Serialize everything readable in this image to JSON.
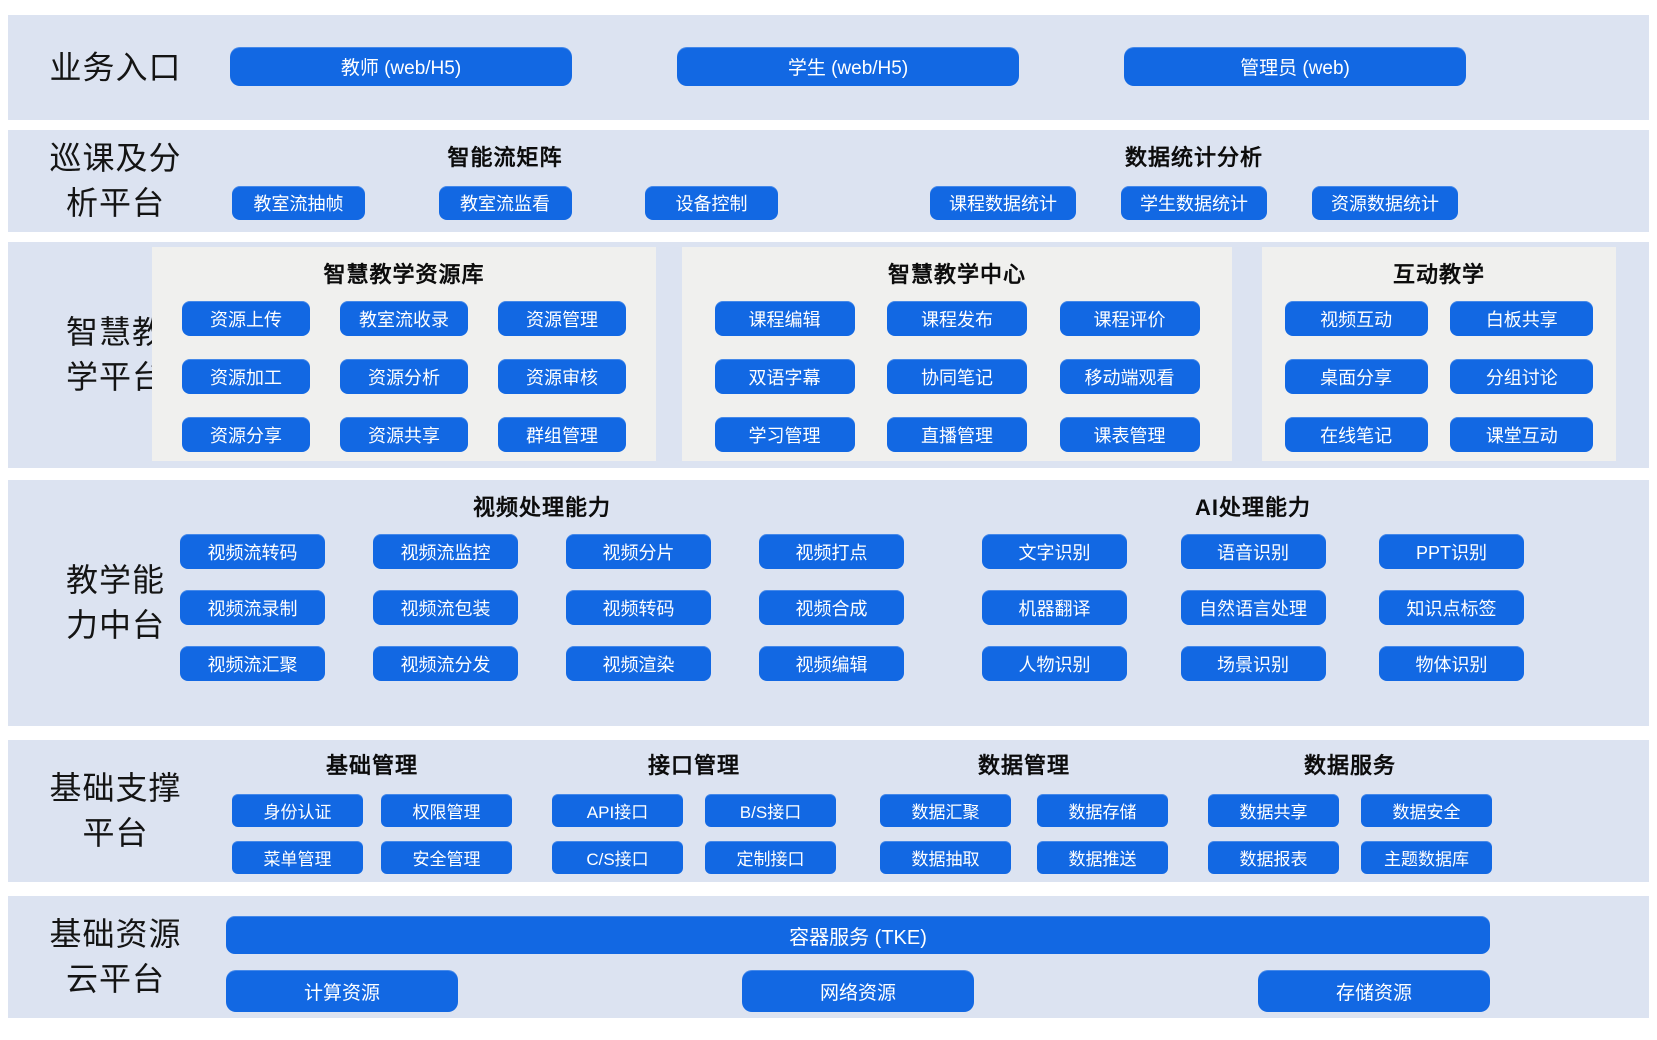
{
  "colors": {
    "button_blue": "#1268e3",
    "band_background": "#dce3f1",
    "panel_background": "#f0f0ee",
    "text_dark": "#141414",
    "button_text": "#ffffff"
  },
  "bands": {
    "business": {
      "label": "业务入口",
      "buttons": [
        "教师 (web/H5)",
        "学生 (web/H5)",
        "管理员 (web)"
      ]
    },
    "inspection": {
      "label": "巡课及分\n析平台",
      "groups": [
        {
          "title": "智能流矩阵",
          "buttons": [
            "教室流抽帧",
            "教室流监看",
            "设备控制"
          ]
        },
        {
          "title": "数据统计分析",
          "buttons": [
            "课程数据统计",
            "学生数据统计",
            "资源数据统计"
          ]
        }
      ]
    },
    "teaching": {
      "label": "智慧教\n学平台",
      "panels": [
        {
          "title": "智慧教学资源库",
          "buttons": [
            "资源上传",
            "教室流收录",
            "资源管理",
            "资源加工",
            "资源分析",
            "资源审核",
            "资源分享",
            "资源共享",
            "群组管理"
          ]
        },
        {
          "title": "智慧教学中心",
          "buttons": [
            "课程编辑",
            "课程发布",
            "课程评价",
            "双语字幕",
            "协同笔记",
            "移动端观看",
            "学习管理",
            "直播管理",
            "课表管理"
          ]
        },
        {
          "title": "互动教学",
          "buttons": [
            "视频互动",
            "白板共享",
            "桌面分享",
            "分组讨论",
            "在线笔记",
            "课堂互动"
          ]
        }
      ]
    },
    "capability": {
      "label": "教学能\n力中台",
      "groups": [
        {
          "title": "视频处理能力",
          "buttons": [
            "视频流转码",
            "视频流监控",
            "视频分片",
            "视频打点",
            "视频流录制",
            "视频流包装",
            "视频转码",
            "视频合成",
            "视频流汇聚",
            "视频流分发",
            "视频渲染",
            "视频编辑"
          ]
        },
        {
          "title": "AI处理能力",
          "buttons": [
            "文字识别",
            "语音识别",
            "PPT识别",
            "机器翻译",
            "自然语言处理",
            "知识点标签",
            "人物识别",
            "场景识别",
            "物体识别"
          ]
        }
      ]
    },
    "support": {
      "label": "基础支撑\n平台",
      "groups": [
        {
          "title": "基础管理",
          "buttons": [
            "身份认证",
            "权限管理",
            "菜单管理",
            "安全管理"
          ]
        },
        {
          "title": "接口管理",
          "buttons": [
            "API接口",
            "B/S接口",
            "C/S接口",
            "定制接口"
          ]
        },
        {
          "title": "数据管理",
          "buttons": [
            "数据汇聚",
            "数据存储",
            "数据抽取",
            "数据推送"
          ]
        },
        {
          "title": "数据服务",
          "buttons": [
            "数据共享",
            "数据安全",
            "数据报表",
            "主题数据库"
          ]
        }
      ]
    },
    "cloud": {
      "label": "基础资源\n云平台",
      "container_service": "容器服务 (TKE)",
      "resources": [
        "计算资源",
        "网络资源",
        "存储资源"
      ]
    }
  }
}
